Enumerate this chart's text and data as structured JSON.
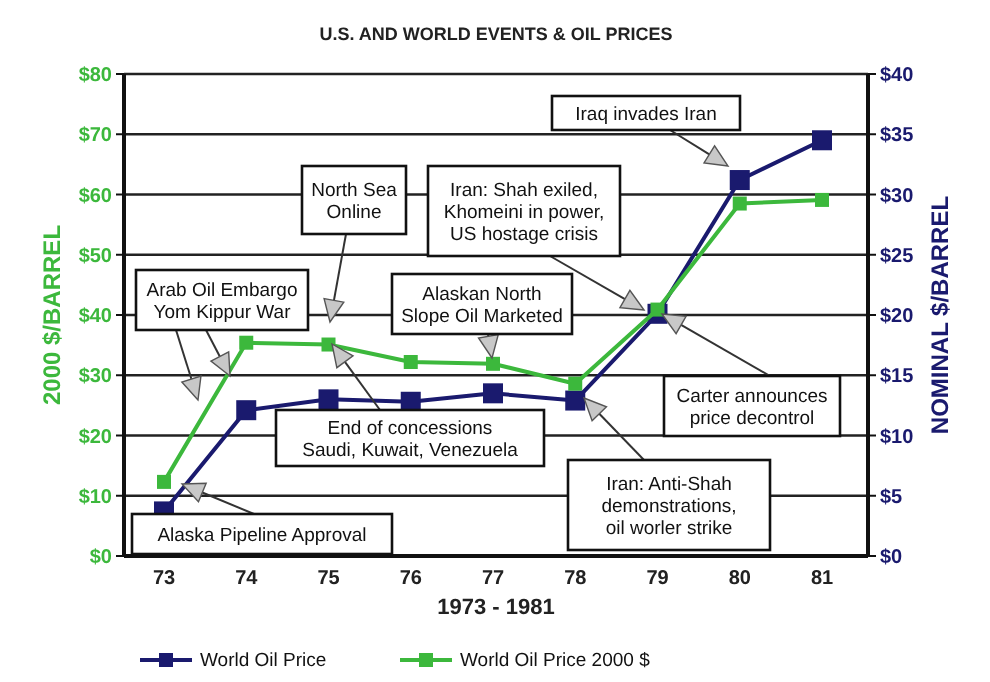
{
  "chart_data": {
    "type": "line",
    "title": "U.S. AND WORLD EVENTS & OIL PRICES",
    "xlabel": "1973 - 1981",
    "ylabel": "2000 $/BARREL",
    "y2label": "NOMINAL $/BARREL",
    "categories": [
      "73",
      "74",
      "75",
      "76",
      "77",
      "78",
      "79",
      "80",
      "81"
    ],
    "series": [
      {
        "name": "World Oil Price",
        "color": "#1a1a6e",
        "axis": "y2",
        "values": [
          3.7,
          12.1,
          13.0,
          12.8,
          13.5,
          12.9,
          20.1,
          31.2,
          34.5
        ]
      },
      {
        "name": "World Oil Price 2000 $",
        "color": "#3cb83c",
        "values": [
          12.3,
          35.4,
          35.1,
          32.2,
          31.9,
          28.6,
          40.9,
          58.5,
          59.1
        ]
      }
    ],
    "ylim": [
      0,
      80
    ],
    "yticks": [
      {
        "value": 0,
        "label": "$0"
      },
      {
        "value": 10,
        "label": "$10"
      },
      {
        "value": 20,
        "label": "$20"
      },
      {
        "value": 30,
        "label": "$30"
      },
      {
        "value": 40,
        "label": "$40"
      },
      {
        "value": 50,
        "label": "$50"
      },
      {
        "value": 60,
        "label": "$60"
      },
      {
        "value": 70,
        "label": "$70"
      },
      {
        "value": 80,
        "label": "$80"
      }
    ],
    "y2lim": [
      0,
      40
    ],
    "y2ticks": [
      {
        "value": 0,
        "label": "$0"
      },
      {
        "value": 5,
        "label": "$5"
      },
      {
        "value": 10,
        "label": "$10"
      },
      {
        "value": 15,
        "label": "$15"
      },
      {
        "value": 20,
        "label": "$20"
      },
      {
        "value": 25,
        "label": "$25"
      },
      {
        "value": 30,
        "label": "$30"
      },
      {
        "value": 35,
        "label": "$35"
      },
      {
        "value": 40,
        "label": "$40"
      }
    ],
    "grid": "y",
    "legend": "bottom",
    "marker": "square",
    "line_style": "solid",
    "annotations": [
      "Iraq invades Iran",
      "Iran: Shah exiled,\nKhomeini in power,\nUS hostage crisis",
      "North Sea\nOnline",
      "Alaskan North\nSlope Oil Marketed",
      "Arab Oil Embargo\nYom Kippur War",
      "End of  concessions\nSaudi, Kuwait, Venezuela",
      "Alaska Pipeline Approval",
      "Carter announces\nprice decontrol",
      "Iran: Anti-Shah\ndemonstrations,\noil worler strike"
    ]
  }
}
